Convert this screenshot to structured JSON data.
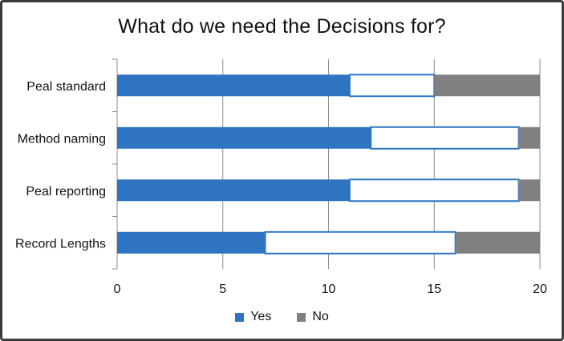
{
  "chart_data": {
    "type": "bar",
    "orientation": "horizontal",
    "stacked": true,
    "title": "What do we need the Decisions for?",
    "categories": [
      "Peal standard",
      "Method naming",
      "Peal reporting",
      "Record Lengths"
    ],
    "series": [
      {
        "name": "Yes",
        "color": "#2e74c0",
        "values": [
          11,
          12,
          11,
          7
        ]
      },
      {
        "name": "",
        "color": "#ffffff",
        "outline": "#2e74c0",
        "values": [
          4,
          7,
          8,
          9
        ]
      },
      {
        "name": "No",
        "color": "#808080",
        "values": [
          5,
          1,
          1,
          4
        ]
      }
    ],
    "xlim": [
      0,
      20
    ],
    "xticks": [
      "0",
      "5",
      "10",
      "15",
      "20"
    ],
    "grid": "vertical",
    "legend": "bottom"
  }
}
